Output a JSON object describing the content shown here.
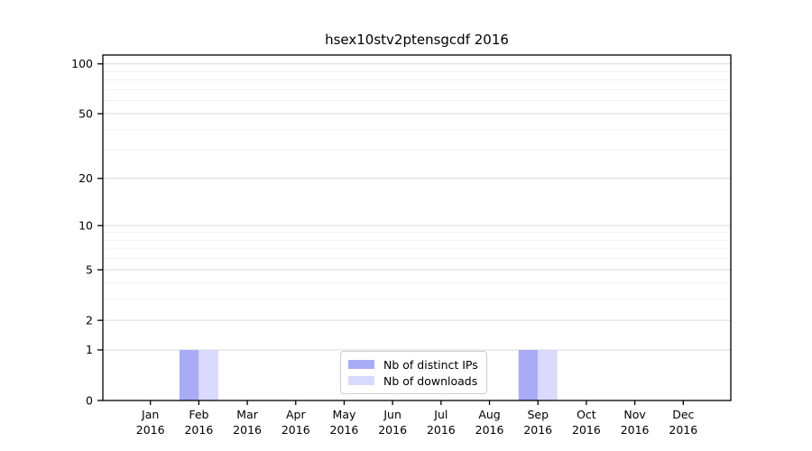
{
  "figure": {
    "title": "hsex10stv2ptensgcdf 2016"
  },
  "chart_data": {
    "type": "bar",
    "title": "hsex10stv2ptensgcdf 2016",
    "categories": [
      "Jan 2016",
      "Feb 2016",
      "Mar 2016",
      "Apr 2016",
      "May 2016",
      "Jun 2016",
      "Jul 2016",
      "Aug 2016",
      "Sep 2016",
      "Oct 2016",
      "Nov 2016",
      "Dec 2016"
    ],
    "series": [
      {
        "name": "Nb of distinct IPs",
        "color": "#aaabf7",
        "values": [
          0,
          1,
          0,
          0,
          0,
          0,
          0,
          0,
          1,
          0,
          0,
          0
        ]
      },
      {
        "name": "Nb of downloads",
        "color": "#d9dafb",
        "values": [
          0,
          1,
          0,
          0,
          0,
          0,
          0,
          0,
          1,
          0,
          0,
          0
        ]
      }
    ],
    "xlabel": "",
    "ylabel": "",
    "yscale": "log1p",
    "ylim": [
      0,
      113
    ],
    "yticks": [
      0,
      1,
      2,
      5,
      10,
      20,
      50,
      100
    ],
    "yticks_minor": [
      3,
      4,
      6,
      7,
      8,
      9,
      30,
      40,
      60,
      70,
      80,
      90
    ],
    "grid": "horizontal-major-and-minor",
    "legend_position": "lower center"
  },
  "colors": {
    "background": "#ffffff",
    "text": "#000000",
    "axis": "#000000",
    "grid_major": "#d9d9d9",
    "grid_minor": "#f1f1f1",
    "legend_border": "#cfcfcf"
  }
}
